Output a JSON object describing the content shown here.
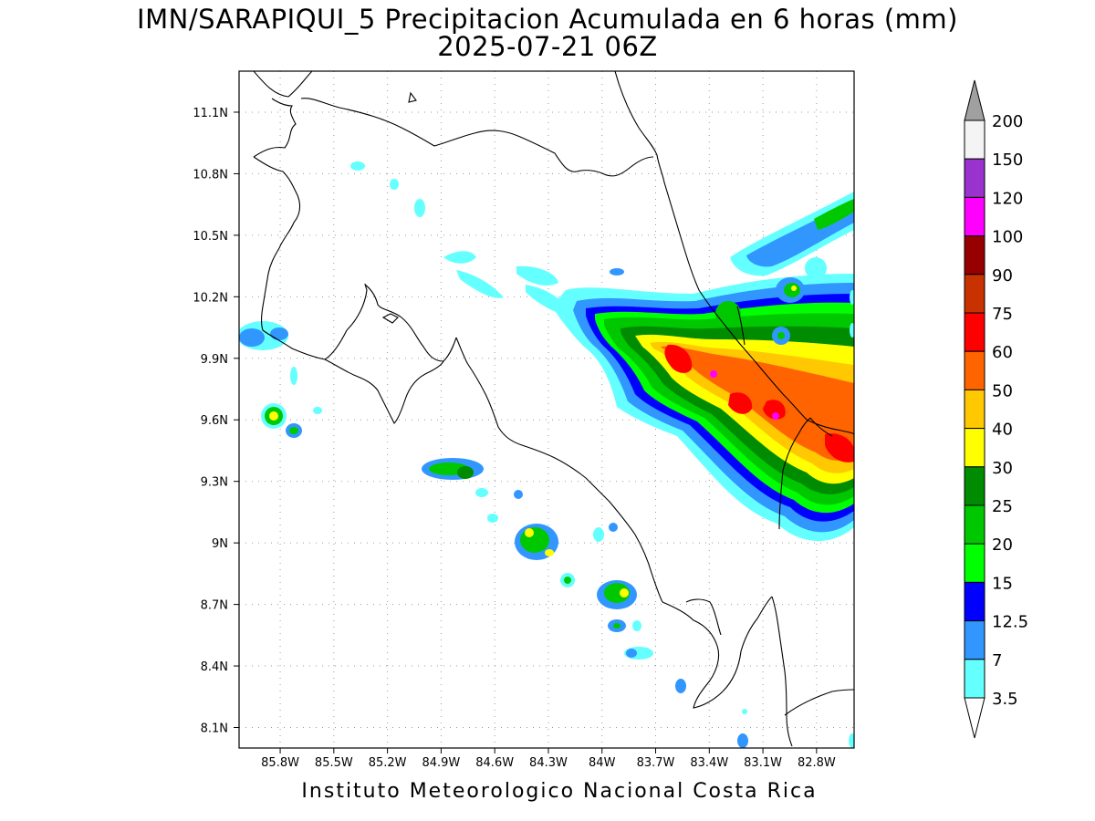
{
  "title": {
    "line1": "IMN/SARAPIQUI_5 Precipitacion Acumulada en 6 horas (mm)",
    "line2": "2025-07-21 06Z"
  },
  "credit": "Instituto Meteorologico Nacional Costa Rica",
  "map": {
    "lon_range": [
      -86.03,
      -82.59
    ],
    "lat_range": [
      8.0,
      11.3
    ],
    "x_ticks": [
      "85.8W",
      "85.5W",
      "85.2W",
      "84.9W",
      "84.6W",
      "84.3W",
      "84W",
      "83.7W",
      "83.4W",
      "83.1W",
      "82.8W"
    ],
    "y_ticks": [
      "11.1N",
      "10.8N",
      "10.5N",
      "10.2N",
      "9.9N",
      "9.6N",
      "9.3N",
      "9N",
      "8.7N",
      "8.4N",
      "8.1N"
    ],
    "grid": "dotted"
  },
  "colorbar": {
    "labels": [
      "200",
      "150",
      "120",
      "100",
      "90",
      "75",
      "60",
      "50",
      "40",
      "30",
      "25",
      "20",
      "15",
      "12.5",
      "7",
      "3.5"
    ],
    "colors": [
      "#a0a0a0",
      "#f4f4f4",
      "#9a32cd",
      "#ff00ff",
      "#960000",
      "#c83200",
      "#ff0000",
      "#ff6400",
      "#ffc800",
      "#ffff00",
      "#008c00",
      "#00c800",
      "#00ff00",
      "#0000ff",
      "#3296ff",
      "#64ffff",
      "#ffffff"
    ]
  }
}
